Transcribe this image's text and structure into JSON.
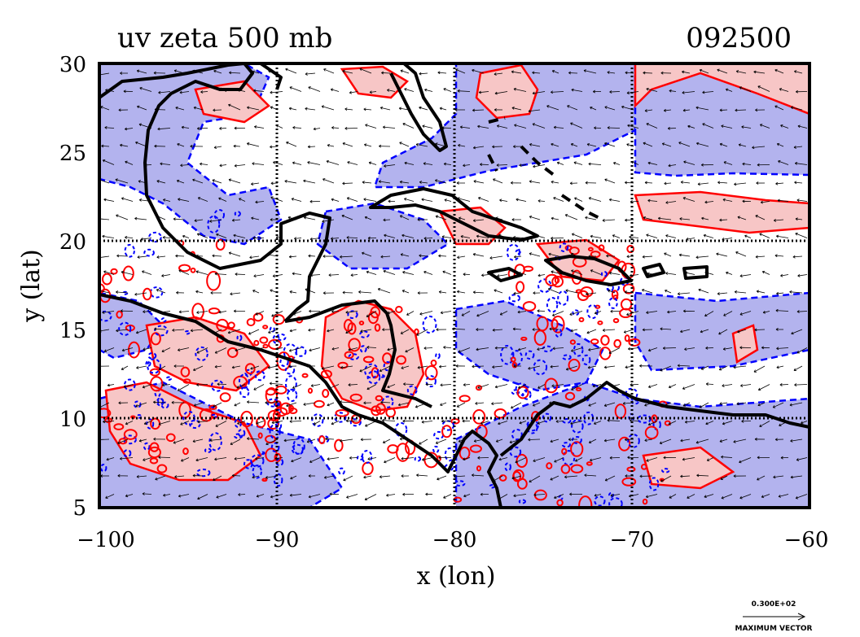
{
  "plot": {
    "title_left": "uv zeta 500 mb",
    "title_right": "092500",
    "xlabel": "x (lon)",
    "ylabel": "y (lat)",
    "xlim": [
      -100,
      -60
    ],
    "ylim": [
      5,
      30
    ],
    "x_ticks": [
      -100,
      -90,
      -80,
      -70,
      -60
    ],
    "y_ticks": [
      5,
      10,
      15,
      20,
      25,
      30
    ],
    "x_tick_labels": [
      "−100",
      "−90",
      "−80",
      "−70",
      "−60"
    ],
    "y_tick_labels": [
      "5",
      "10",
      "15",
      "20",
      "25",
      "30"
    ],
    "grid_lon": [
      -90,
      -80,
      -70
    ],
    "grid_lat": [
      10,
      20
    ],
    "legend_value": "0.300E+02",
    "legend_caption": "MAXIMUM VECTOR"
  },
  "colors": {
    "positive_fill": "#f7c6c6",
    "positive_line": "#ff0000",
    "negative_fill": "#b3b3ee",
    "negative_line": "#0000ff",
    "coast": "#000000"
  }
}
